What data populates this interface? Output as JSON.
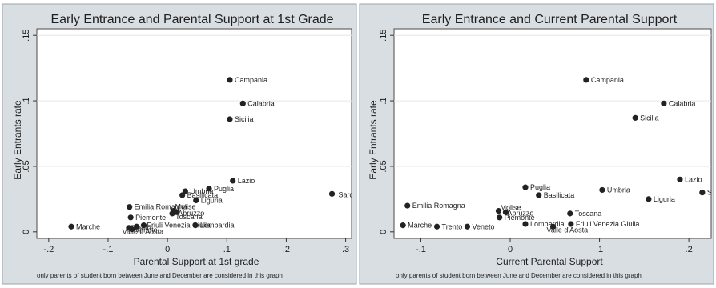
{
  "chart_data": [
    {
      "type": "scatter",
      "title": "Early Entrance and Parental Support at 1st Grade",
      "xlabel": "Parental Support at 1st grade",
      "ylabel": "Early Entrants rate",
      "note": "only parents of student born between June and December are considered in this graph",
      "xlim": [
        -0.22,
        0.31
      ],
      "ylim": [
        -0.005,
        0.155
      ],
      "xticks": [
        -0.2,
        -0.1,
        0,
        0.1,
        0.2,
        0.3
      ],
      "xtick_labels": [
        "-.2",
        "-.1",
        "0",
        ".1",
        ".2",
        ".3"
      ],
      "yticks": [
        0,
        0.05,
        0.1,
        0.15
      ],
      "ytick_labels": [
        "0",
        ".05",
        ".1",
        ".15"
      ],
      "gridlines": "horizontal",
      "points": [
        {
          "label": "Campania",
          "x": 0.105,
          "y": 0.116
        },
        {
          "label": "Calabria",
          "x": 0.127,
          "y": 0.098
        },
        {
          "label": "Sicilia",
          "x": 0.105,
          "y": 0.086
        },
        {
          "label": "Lazio",
          "x": 0.11,
          "y": 0.039
        },
        {
          "label": "Puglia",
          "x": 0.07,
          "y": 0.033
        },
        {
          "label": "Umbria",
          "x": 0.03,
          "y": 0.031
        },
        {
          "label": "Basilicata",
          "x": 0.025,
          "y": 0.028
        },
        {
          "label": "Liguria",
          "x": 0.048,
          "y": 0.024
        },
        {
          "label": "Sardegna",
          "x": 0.277,
          "y": 0.029
        },
        {
          "label": "Emilia Romagna",
          "x": -0.064,
          "y": 0.019
        },
        {
          "label": "Molise",
          "x": 0.01,
          "y": 0.016
        },
        {
          "label": "Abruzzo",
          "x": 0.015,
          "y": 0.015
        },
        {
          "label": "Toscana",
          "x": 0.008,
          "y": 0.014
        },
        {
          "label": "Piemonte",
          "x": -0.062,
          "y": 0.011
        },
        {
          "label": "Friuli Venezia Giulia",
          "x": -0.04,
          "y": 0.005
        },
        {
          "label": "Valle d'Aosta",
          "x": -0.052,
          "y": 0.004
        },
        {
          "label": "Lombardia",
          "x": 0.047,
          "y": 0.005
        },
        {
          "label": "Marche",
          "x": -0.162,
          "y": 0.004
        },
        {
          "label": "Trento",
          "x": -0.065,
          "y": 0.003
        },
        {
          "label": "Veneto",
          "x": -0.06,
          "y": 0.002
        }
      ]
    },
    {
      "type": "scatter",
      "title": "Early Entrance and Current Parental Support",
      "xlabel": "Current Parental Support",
      "ylabel": "Early Entrants rate",
      "note": "only parents of student born between June and December are considered in this graph",
      "xlim": [
        -0.13,
        0.225
      ],
      "ylim": [
        -0.005,
        0.155
      ],
      "xticks": [
        -0.1,
        0,
        0.1,
        0.2
      ],
      "xtick_labels": [
        "-.1",
        "0",
        ".1",
        ".2"
      ],
      "yticks": [
        0,
        0.05,
        0.1,
        0.15
      ],
      "ytick_labels": [
        "0",
        ".05",
        ".1",
        ".15"
      ],
      "gridlines": "horizontal",
      "points": [
        {
          "label": "Campania",
          "x": 0.085,
          "y": 0.116
        },
        {
          "label": "Calabria",
          "x": 0.172,
          "y": 0.098
        },
        {
          "label": "Sicilia",
          "x": 0.14,
          "y": 0.087
        },
        {
          "label": "Lazio",
          "x": 0.19,
          "y": 0.04
        },
        {
          "label": "Sardegna",
          "x": 0.215,
          "y": 0.03
        },
        {
          "label": "Puglia",
          "x": 0.017,
          "y": 0.034
        },
        {
          "label": "Umbria",
          "x": 0.103,
          "y": 0.032
        },
        {
          "label": "Basilicata",
          "x": 0.032,
          "y": 0.028
        },
        {
          "label": "Liguria",
          "x": 0.155,
          "y": 0.025
        },
        {
          "label": "Emilia Romagna",
          "x": -0.115,
          "y": 0.02
        },
        {
          "label": "Molise",
          "x": -0.013,
          "y": 0.016
        },
        {
          "label": "Abruzzo",
          "x": -0.005,
          "y": 0.015
        },
        {
          "label": "Toscana",
          "x": 0.067,
          "y": 0.014
        },
        {
          "label": "Piemonte",
          "x": -0.012,
          "y": 0.011
        },
        {
          "label": "Marche",
          "x": -0.12,
          "y": 0.005
        },
        {
          "label": "Trento",
          "x": -0.082,
          "y": 0.004
        },
        {
          "label": "Veneto",
          "x": -0.048,
          "y": 0.004
        },
        {
          "label": "Lombardia",
          "x": 0.017,
          "y": 0.006
        },
        {
          "label": "Valle d'Aosta",
          "x": 0.048,
          "y": 0.004
        },
        {
          "label": "Friuli Venezia Giulia",
          "x": 0.068,
          "y": 0.006
        }
      ]
    }
  ]
}
